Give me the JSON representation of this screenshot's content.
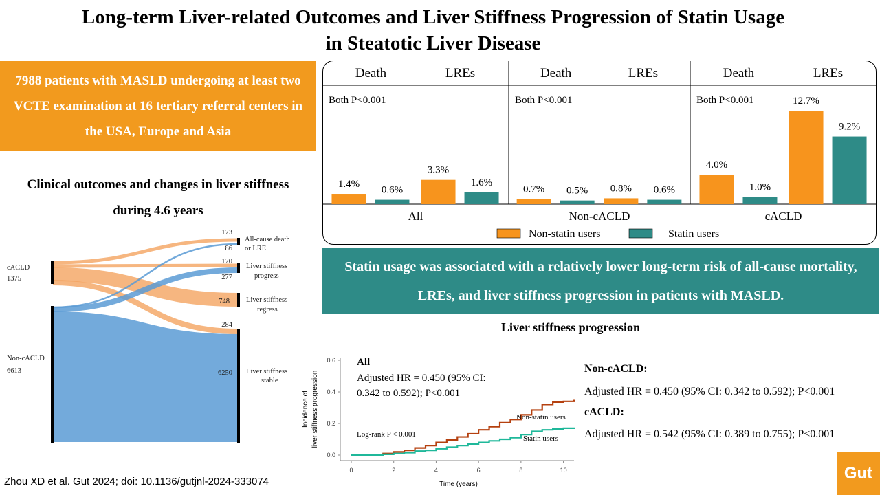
{
  "title_line1": "Long-term Liver-related Outcomes and Liver Stiffness Progression of Statin Usage",
  "title_line2": "in Steatotic Liver Disease",
  "orange_box": "7988 patients with MASLD undergoing at least two VCTE examination at 16 tertiary referral centers  in the USA, Europe and Asia",
  "sankey": {
    "title": "Clinical outcomes and changes in liver stiffness during 4.6 years",
    "sources": [
      {
        "label": "cACLD",
        "count": "1375"
      },
      {
        "label": "Non-cACLD",
        "count": "6613"
      }
    ],
    "targets": [
      {
        "label_line1": "All-cause death",
        "label_line2": "or LRE",
        "counts": [
          "173",
          "86"
        ]
      },
      {
        "label_line1": "Liver stiffness",
        "label_line2": "progress",
        "counts": [
          "170",
          "277"
        ]
      },
      {
        "label_line1": "Liver stiffness",
        "label_line2": "regress",
        "counts": [
          "748"
        ]
      },
      {
        "label_line1": "Liver stiffness",
        "label_line2": "stable",
        "counts": [
          "284",
          "6250"
        ]
      }
    ],
    "colors": {
      "cacld": "#f4a460",
      "noncacld": "#5b9bd5"
    }
  },
  "chart_data": [
    {
      "type": "bar",
      "groups": [
        "All",
        "Non-cACLD",
        "cACLD"
      ],
      "subgroups": [
        "Death",
        "LREs"
      ],
      "p_text": "Both P<0.001",
      "series": [
        {
          "name": "Non-statin users",
          "color": "#f7941d",
          "values": [
            1.4,
            3.3,
            0.7,
            0.8,
            4.0,
            12.7
          ],
          "labels": [
            "1.4%",
            "3.3%",
            "0.7%",
            "0.8%",
            "4.0%",
            "12.7%"
          ]
        },
        {
          "name": "Statin users",
          "color": "#2e8b87",
          "values": [
            0.6,
            1.6,
            0.5,
            0.6,
            1.0,
            9.2
          ],
          "labels": [
            "0.6%",
            "1.6%",
            "0.5%",
            "0.6%",
            "1.0%",
            "9.2%"
          ]
        }
      ]
    },
    {
      "type": "line",
      "ylabel_line1": "Incidence of",
      "ylabel_line2": "liver stiffness progression",
      "xlabel": "Time (years)",
      "xticks": [
        0,
        2,
        4,
        6,
        8,
        10
      ],
      "yticks": [
        "0.0",
        "0.2",
        "0.4",
        "0.6"
      ],
      "xlim": [
        0,
        10.5
      ],
      "ylim": [
        0,
        0.6
      ],
      "annotation_title": "All",
      "annotation_line1": "Adjusted HR = 0.450 (95% CI:",
      "annotation_line2": "0.342 to 0.592); P<0.001",
      "logrank": "Log-rank P < 0.001",
      "series": [
        {
          "name": "Non-statin users",
          "color": "#b5400f",
          "x": [
            0,
            1,
            1.5,
            2,
            2.5,
            3,
            3.5,
            4,
            4.5,
            5,
            5.5,
            6,
            6.5,
            7,
            7.5,
            8,
            8.5,
            9,
            9.5,
            10,
            10.5
          ],
          "y": [
            0,
            0,
            0.01,
            0.02,
            0.03,
            0.045,
            0.06,
            0.08,
            0.095,
            0.115,
            0.135,
            0.16,
            0.18,
            0.205,
            0.225,
            0.255,
            0.285,
            0.32,
            0.335,
            0.34,
            0.35
          ]
        },
        {
          "name": "Statin users",
          "color": "#1fb89a",
          "x": [
            0,
            1,
            1.5,
            2,
            2.5,
            3,
            3.5,
            4,
            4.5,
            5,
            5.5,
            6,
            6.5,
            7,
            7.5,
            8,
            8.5,
            9,
            9.5,
            10,
            10.5
          ],
          "y": [
            0,
            0,
            0.005,
            0.01,
            0.015,
            0.025,
            0.03,
            0.04,
            0.05,
            0.06,
            0.07,
            0.08,
            0.09,
            0.1,
            0.11,
            0.13,
            0.15,
            0.16,
            0.165,
            0.17,
            0.175
          ]
        }
      ]
    }
  ],
  "teal_box": "Statin usage was associated with a relatively lower long-term risk of all-cause mortality, LREs, and liver stiffness progression in patients with MASLD.",
  "ls_progression_title": "Liver stiffness progression",
  "hr_results": {
    "noncacld_label": "Non-cACLD:",
    "noncacld_text": "Adjusted HR = 0.450 (95% CI: 0.342 to 0.592); P<0.001",
    "cacld_label": "cACLD:",
    "cacld_text": "Adjusted HR = 0.542 (95% CI: 0.389 to 0.755); P<0.001"
  },
  "citation": "Zhou XD et al. Gut 2024; doi: 10.1136/gutjnl-2024-333074",
  "logo": "Gut"
}
